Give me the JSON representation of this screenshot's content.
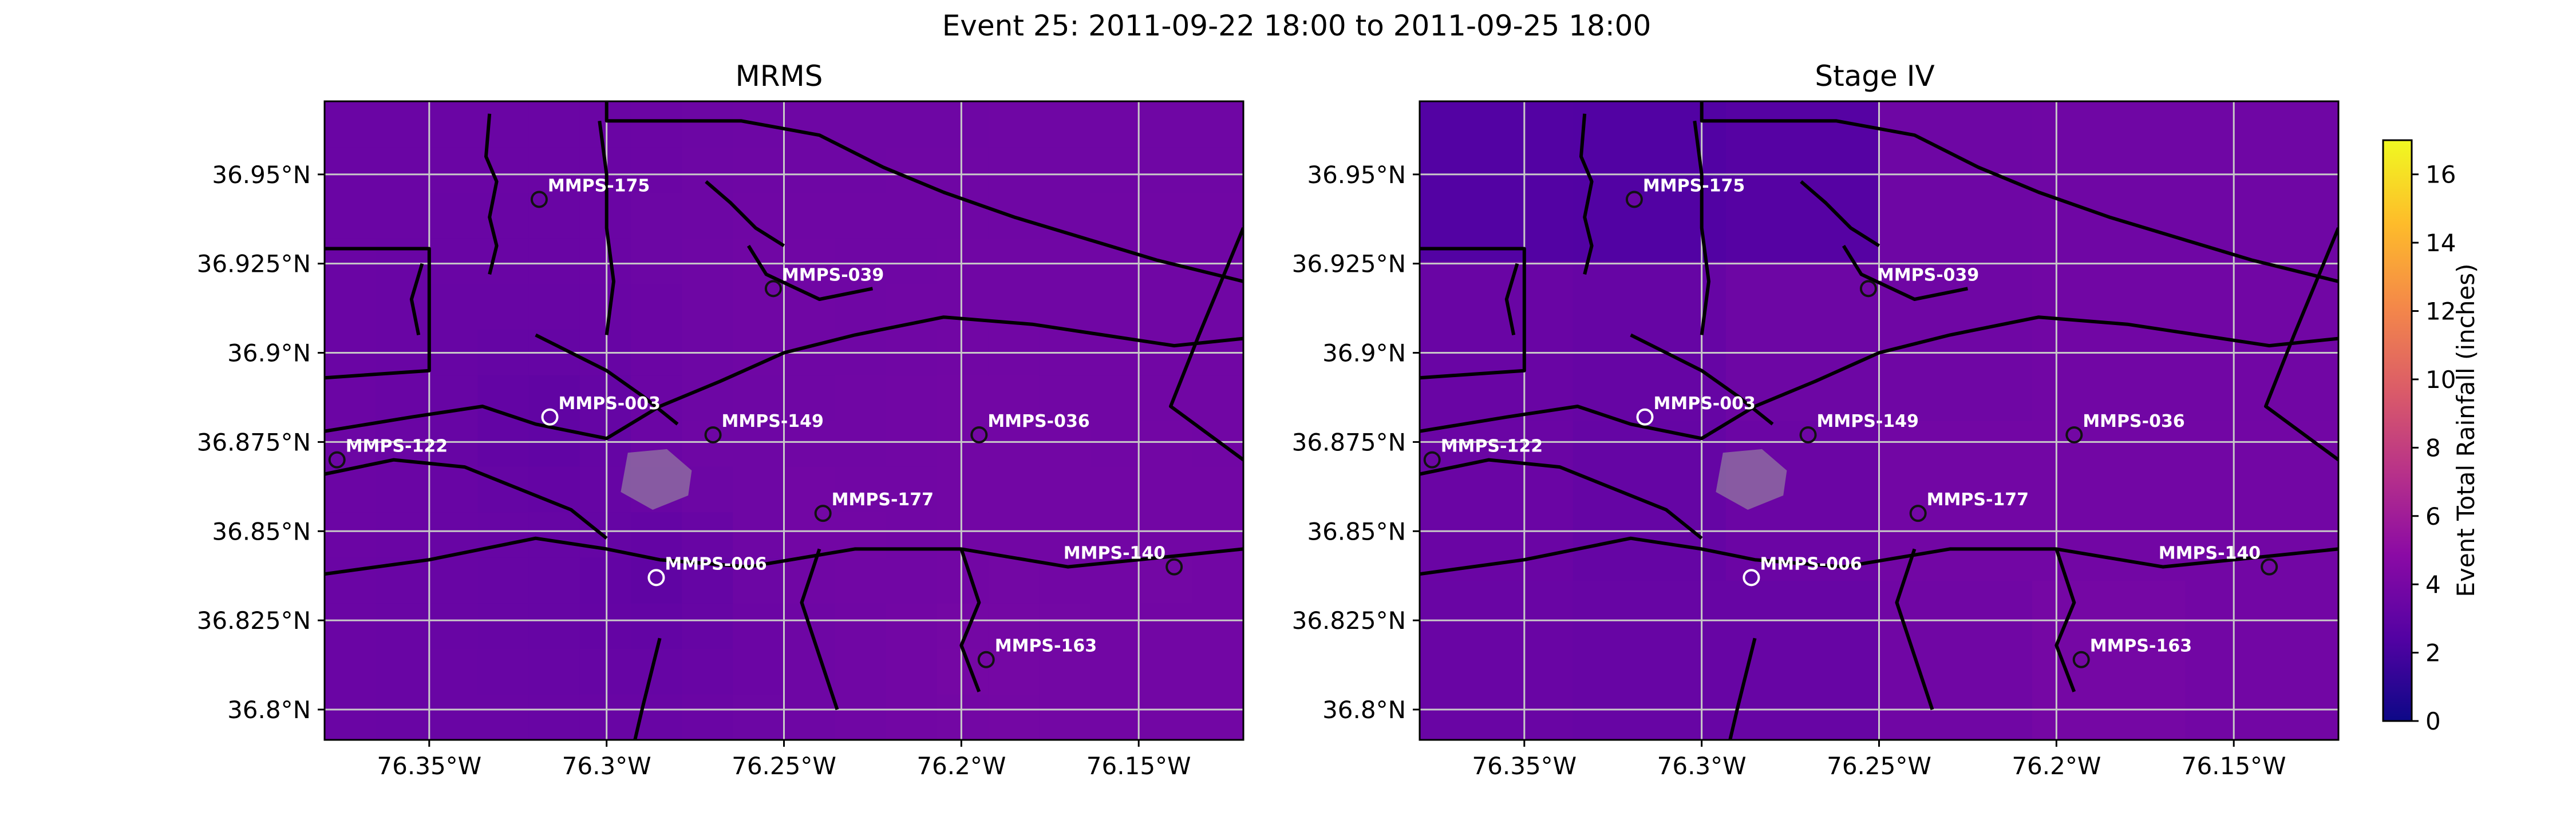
{
  "figure": {
    "title": "Event 25: 2011-09-22 18:00 to 2011-09-25 18:00"
  },
  "colorbar": {
    "label": "Event Total Rainfall (inches)",
    "min": 0,
    "max": 17,
    "ticks": [
      "0",
      "2",
      "4",
      "6",
      "8",
      "10",
      "12",
      "14",
      "16"
    ],
    "colormap": [
      "#0d0887",
      "#5302a3",
      "#8b0aa5",
      "#b83289",
      "#db5c68",
      "#f48849",
      "#febc2a",
      "#f0f921"
    ]
  },
  "chart_data": [
    {
      "type": "heatmap",
      "title": "MRMS",
      "xlim": [
        -76.3795,
        -76.1205
      ],
      "ylim": [
        36.7915,
        36.9705
      ],
      "x_ticks": [
        {
          "value": -76.35,
          "label": "76.35°W"
        },
        {
          "value": -76.3,
          "label": "76.3°W"
        },
        {
          "value": -76.25,
          "label": "76.25°W"
        },
        {
          "value": -76.2,
          "label": "76.2°W"
        },
        {
          "value": -76.15,
          "label": "76.15°W"
        }
      ],
      "y_ticks": [
        {
          "value": 36.95,
          "label": "36.95°N"
        },
        {
          "value": 36.925,
          "label": "36.925°N"
        },
        {
          "value": 36.9,
          "label": "36.9°N"
        },
        {
          "value": 36.875,
          "label": "36.875°N"
        },
        {
          "value": 36.85,
          "label": "36.85°N"
        },
        {
          "value": 36.825,
          "label": "36.825°N"
        },
        {
          "value": 36.8,
          "label": "36.8°N"
        }
      ],
      "grid": true,
      "gauges": [
        {
          "name": "MMPS-175",
          "lon": -76.319,
          "lat": 36.943,
          "value": 3.4
        },
        {
          "name": "MMPS-039",
          "lon": -76.253,
          "lat": 36.918,
          "value": 3.7
        },
        {
          "name": "MMPS-003",
          "lon": -76.316,
          "lat": 36.882,
          "value": 3.0
        },
        {
          "name": "MMPS-149",
          "lon": -76.27,
          "lat": 36.877,
          "value": 3.6
        },
        {
          "name": "MMPS-036",
          "lon": -76.195,
          "lat": 36.877,
          "value": 3.8
        },
        {
          "name": "MMPS-122",
          "lon": -76.376,
          "lat": 36.87,
          "value": 3.5
        },
        {
          "name": "MMPS-177",
          "lon": -76.239,
          "lat": 36.855,
          "value": 3.8
        },
        {
          "name": "MMPS-006",
          "lon": -76.286,
          "lat": 36.837,
          "value": 3.0
        },
        {
          "name": "MMPS-140",
          "lon": -76.14,
          "lat": 36.84,
          "value": 3.8
        },
        {
          "name": "MMPS-163",
          "lon": -76.193,
          "lat": 36.814,
          "value": 3.9
        }
      ]
    },
    {
      "type": "heatmap",
      "title": "Stage IV",
      "xlim": [
        -76.3795,
        -76.1205
      ],
      "ylim": [
        36.7915,
        36.9705
      ],
      "x_ticks": [
        {
          "value": -76.35,
          "label": "76.35°W"
        },
        {
          "value": -76.3,
          "label": "76.3°W"
        },
        {
          "value": -76.25,
          "label": "76.25°W"
        },
        {
          "value": -76.2,
          "label": "76.2°W"
        },
        {
          "value": -76.15,
          "label": "76.15°W"
        }
      ],
      "y_ticks": [
        {
          "value": 36.95,
          "label": "36.95°N"
        },
        {
          "value": 36.925,
          "label": "36.925°N"
        },
        {
          "value": 36.9,
          "label": "36.9°N"
        },
        {
          "value": 36.875,
          "label": "36.875°N"
        },
        {
          "value": 36.85,
          "label": "36.85°N"
        },
        {
          "value": 36.825,
          "label": "36.825°N"
        },
        {
          "value": 36.8,
          "label": "36.8°N"
        }
      ],
      "grid": true,
      "gauges": [
        {
          "name": "MMPS-175",
          "lon": -76.319,
          "lat": 36.943,
          "value": 3.4
        },
        {
          "name": "MMPS-039",
          "lon": -76.253,
          "lat": 36.918,
          "value": 3.7
        },
        {
          "name": "MMPS-003",
          "lon": -76.316,
          "lat": 36.882,
          "value": 3.0
        },
        {
          "name": "MMPS-149",
          "lon": -76.27,
          "lat": 36.877,
          "value": 3.6
        },
        {
          "name": "MMPS-036",
          "lon": -76.195,
          "lat": 36.877,
          "value": 3.8
        },
        {
          "name": "MMPS-122",
          "lon": -76.376,
          "lat": 36.87,
          "value": 3.5
        },
        {
          "name": "MMPS-177",
          "lon": -76.239,
          "lat": 36.855,
          "value": 3.8
        },
        {
          "name": "MMPS-006",
          "lon": -76.286,
          "lat": 36.837,
          "value": 3.0
        },
        {
          "name": "MMPS-140",
          "lon": -76.14,
          "lat": 36.84,
          "value": 3.8
        },
        {
          "name": "MMPS-163",
          "lon": -76.193,
          "lat": 36.814,
          "value": 3.9
        }
      ]
    }
  ]
}
